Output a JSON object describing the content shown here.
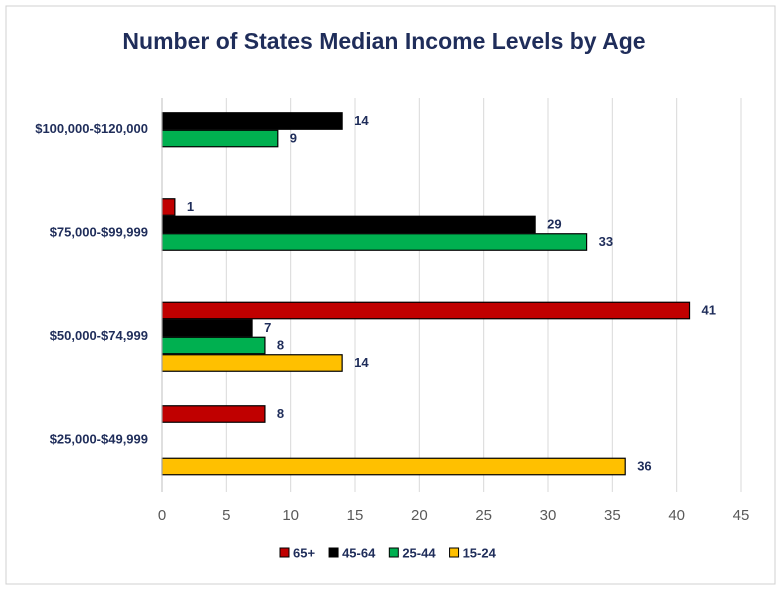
{
  "chart_data": {
    "type": "hbar",
    "title": "Number of States Median Income Levels by Age",
    "categories": [
      "$100,000-$120,000",
      "$75,000-$99,999",
      "$50,000-$74,999",
      "$25,000-$49,999"
    ],
    "series": [
      {
        "name": "65+",
        "color": "#c00000",
        "values": [
          null,
          1,
          41,
          8
        ]
      },
      {
        "name": "45-64",
        "color": "#000000",
        "values": [
          14,
          29,
          7,
          null
        ]
      },
      {
        "name": "25-44",
        "color": "#00b050",
        "values": [
          9,
          33,
          8,
          null
        ]
      },
      {
        "name": "15-24",
        "color": "#ffc000",
        "values": [
          null,
          null,
          14,
          36
        ]
      }
    ],
    "xlim": [
      0,
      45
    ],
    "xticks": [
      0,
      5,
      10,
      15,
      20,
      25,
      30,
      35,
      40,
      45
    ],
    "grid": true,
    "legend": "bottom"
  }
}
